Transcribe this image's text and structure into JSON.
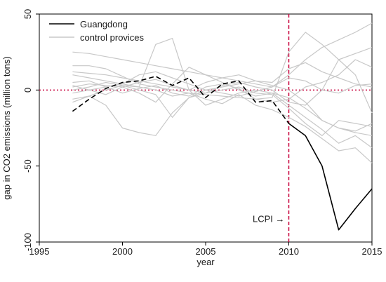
{
  "chart_data": {
    "type": "line",
    "xlabel": "year",
    "ylabel": "gap in CO2 emissions (million tons)",
    "xlim": [
      1995,
      2015
    ],
    "ylim": [
      -100,
      50
    ],
    "x_ticks": [
      1995,
      2000,
      2005,
      2010,
      2015
    ],
    "y_ticks": [
      50,
      0,
      -50,
      -100
    ],
    "grid": false,
    "legend_position": "top-left",
    "reference_lines": {
      "y": 0,
      "x": 2010,
      "color": "#c8003c"
    },
    "annotation": {
      "text": "LCPI →",
      "x": 2010,
      "y": -85
    },
    "x": [
      1997,
      1998,
      1999,
      2000,
      2001,
      2002,
      2003,
      2004,
      2005,
      2006,
      2007,
      2008,
      2009,
      2010,
      2011,
      2012,
      2013,
      2014,
      2015
    ],
    "series": [
      {
        "name": "Guangdong",
        "color": "#000000",
        "role": "treated",
        "values": [
          -14,
          -6,
          1,
          5,
          6,
          9,
          3,
          8,
          -5,
          4,
          6,
          -8,
          -7,
          -22,
          -30,
          -50,
          -92,
          -78,
          -65
        ]
      },
      {
        "name": "control provices",
        "color": "#c8c8c8",
        "role": "control",
        "values": [
          25,
          24,
          22,
          20,
          18,
          16,
          14,
          12,
          10,
          8,
          6,
          4,
          2,
          10,
          20,
          28,
          33,
          38,
          44
        ]
      },
      {
        "color": "#c8c8c8",
        "values": [
          16,
          16,
          14,
          9,
          4,
          2,
          0,
          -2,
          -3,
          -4,
          -5,
          -6,
          -5,
          25,
          38,
          30,
          20,
          24,
          28
        ]
      },
      {
        "color": "#c8c8c8",
        "values": [
          -6,
          -4,
          -10,
          -25,
          -28,
          -30,
          -15,
          -5,
          0,
          2,
          4,
          6,
          5,
          14,
          18,
          12,
          8,
          4,
          2
        ]
      },
      {
        "color": "#c8c8c8",
        "values": [
          10,
          8,
          6,
          4,
          2,
          30,
          34,
          0,
          -10,
          -6,
          -2,
          0,
          -2,
          -5,
          -12,
          -20,
          -25,
          -28,
          -30
        ]
      },
      {
        "color": "#c8c8c8",
        "values": [
          2,
          4,
          3,
          2,
          -2,
          -8,
          4,
          15,
          10,
          5,
          0,
          -4,
          -2,
          -10,
          -18,
          -26,
          -35,
          -30,
          -38
        ]
      },
      {
        "color": "#c8c8c8",
        "values": [
          -8,
          -4,
          0,
          3,
          2,
          0,
          -4,
          -2,
          -6,
          -9,
          -3,
          -10,
          -13,
          -18,
          -24,
          -32,
          -40,
          -38,
          -48
        ]
      },
      {
        "color": "#c8c8c8",
        "values": [
          0,
          2,
          5,
          3,
          0,
          -3,
          -18,
          -5,
          -2,
          0,
          2,
          -2,
          -3,
          -12,
          -22,
          -30,
          -20,
          -22,
          -24
        ]
      },
      {
        "color": "#c8c8c8",
        "values": [
          5,
          6,
          2,
          -2,
          1,
          3,
          -2,
          -4,
          2,
          4,
          1,
          -6,
          -8,
          -6,
          2,
          5,
          10,
          20,
          15
        ]
      },
      {
        "color": "#c8c8c8",
        "values": [
          12,
          11,
          10,
          8,
          6,
          4,
          2,
          0,
          -2,
          3,
          5,
          2,
          0,
          -8,
          -10,
          0,
          20,
          10,
          -15
        ]
      },
      {
        "color": "#c8c8c8",
        "values": [
          -2,
          0,
          2,
          4,
          10,
          12,
          8,
          4,
          0,
          -2,
          -4,
          -1,
          2,
          8,
          6,
          0,
          -2,
          3,
          4
        ]
      },
      {
        "color": "#c8c8c8",
        "values": [
          3,
          0,
          -3,
          2,
          5,
          7,
          3,
          0,
          5,
          8,
          10,
          6,
          3,
          0,
          -8,
          -20,
          -25,
          -27,
          -22
        ]
      }
    ]
  }
}
